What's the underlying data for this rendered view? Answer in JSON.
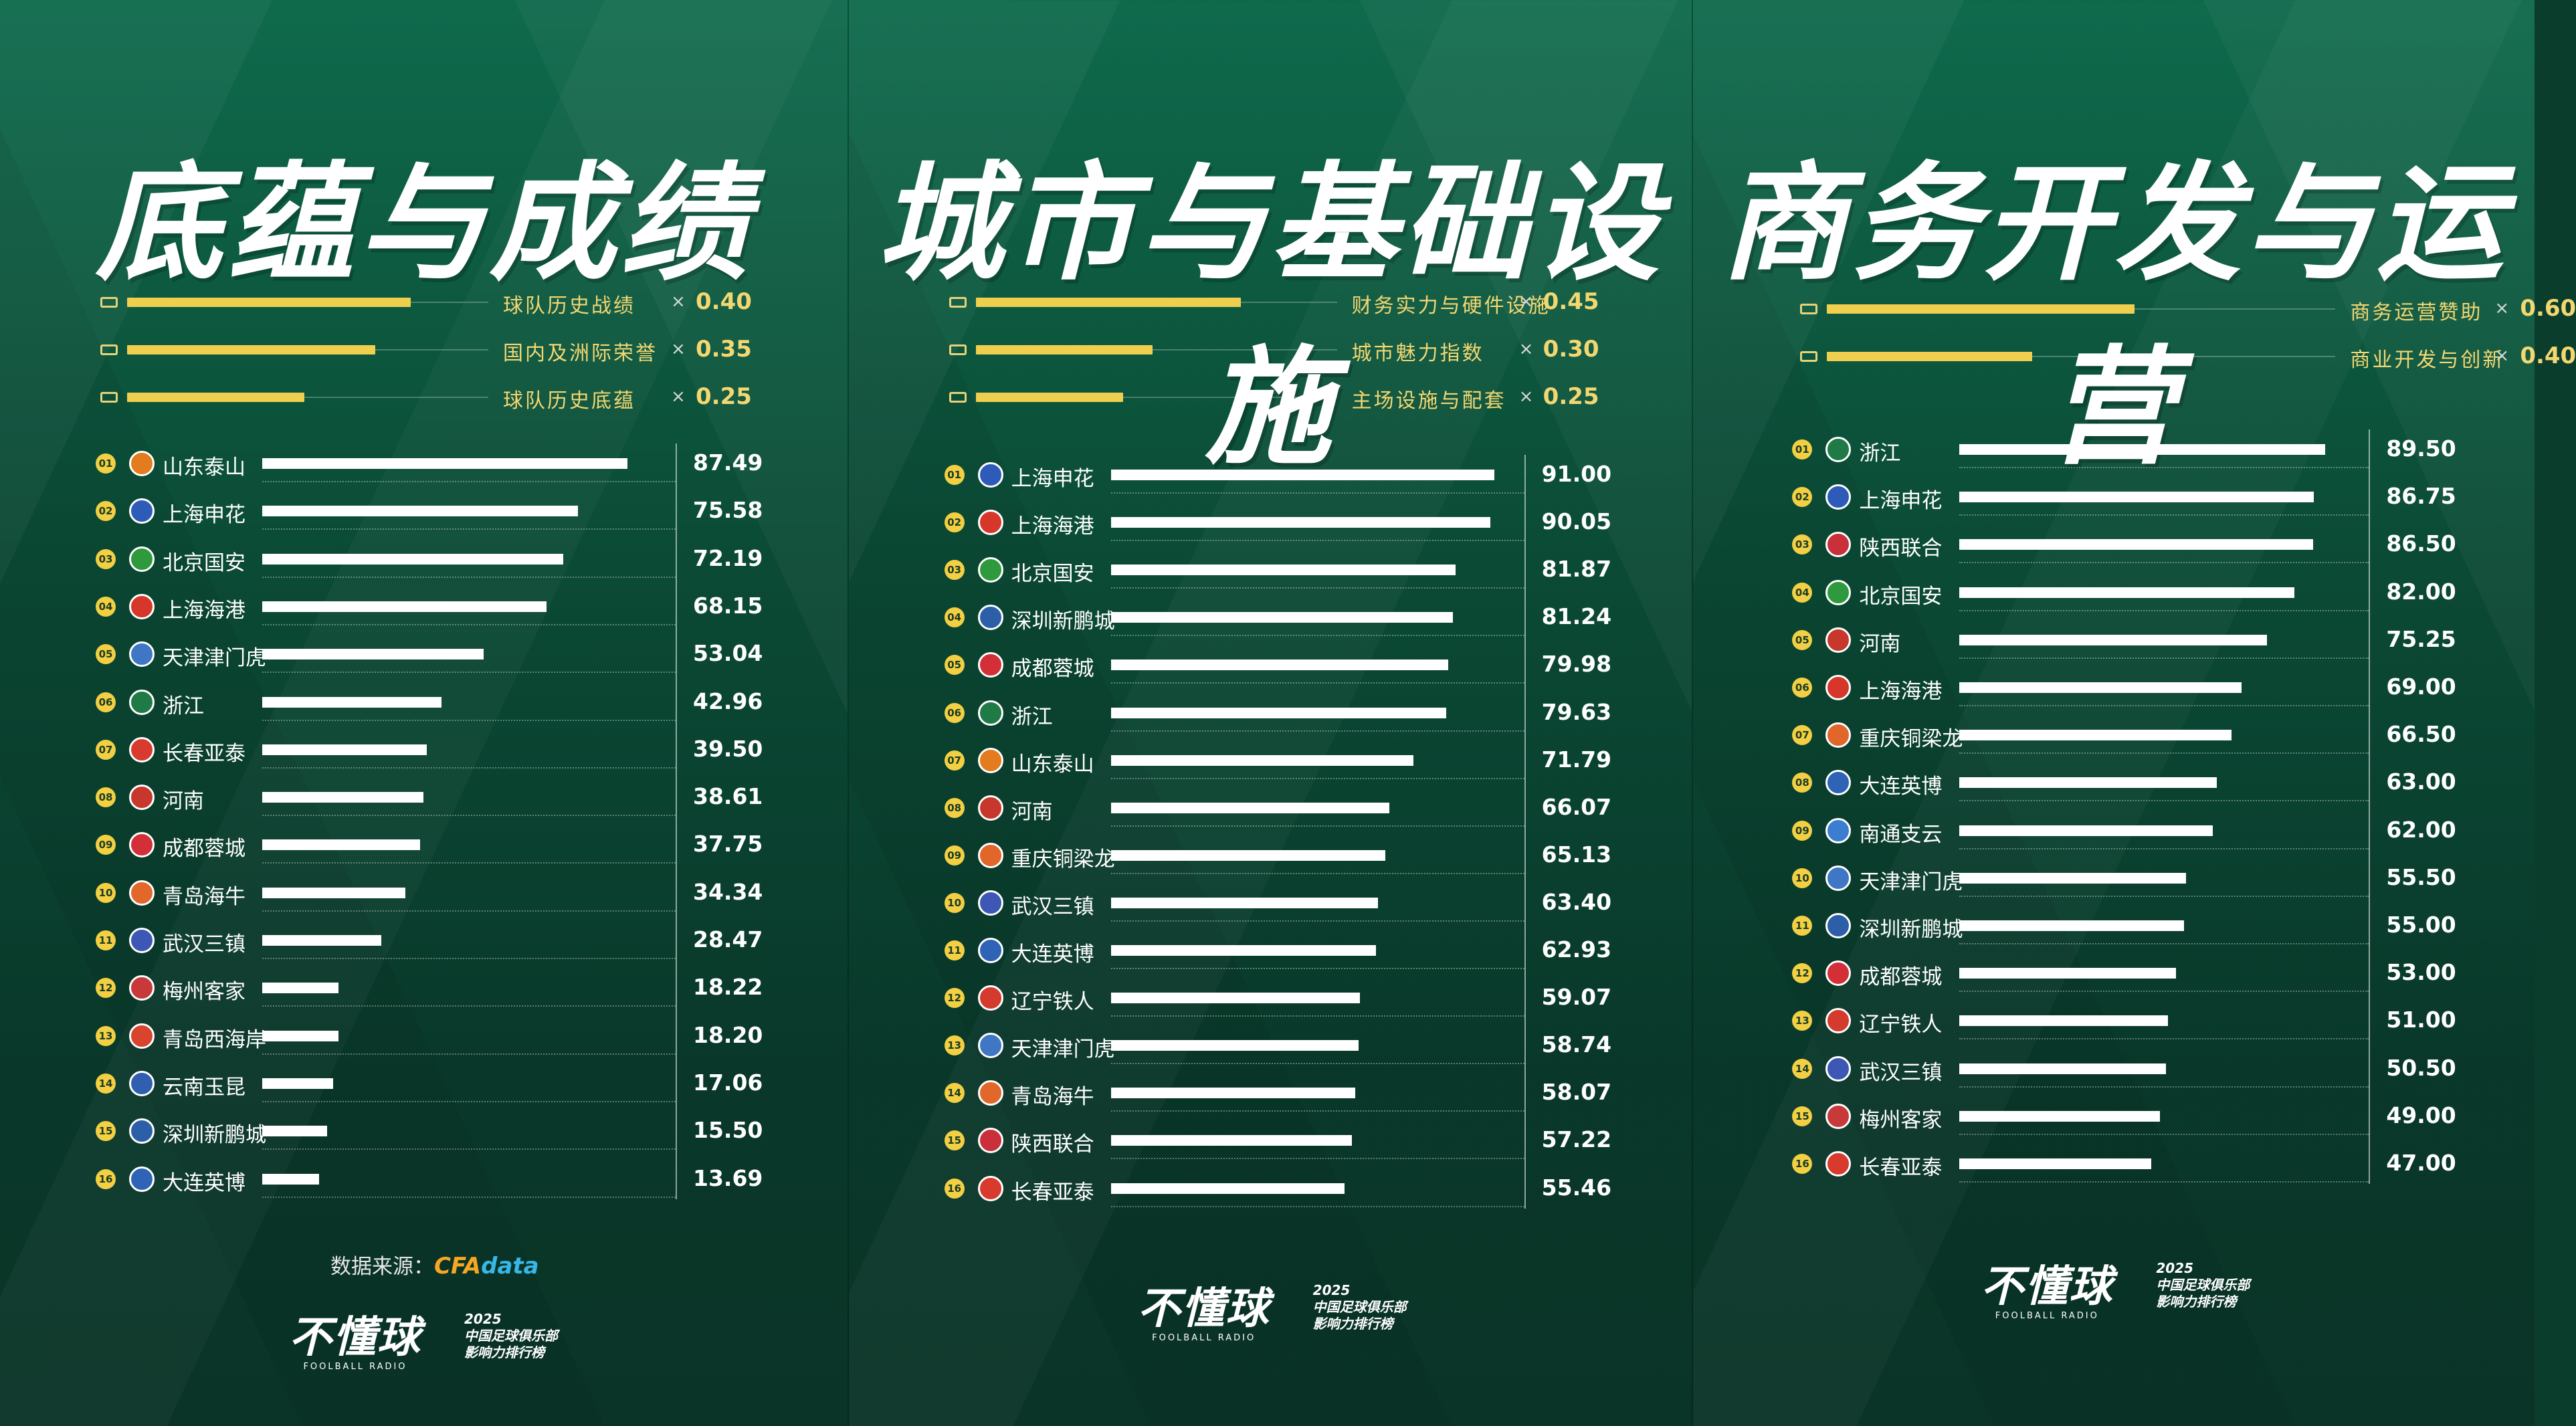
{
  "colors": {
    "accent": "#f0cf4f",
    "bar": "#ffffff",
    "background": "#0b4a35"
  },
  "panels": [
    {
      "title": "底蕴与成绩",
      "weights": [
        {
          "label": "球队历史战绩",
          "x": "×",
          "value": "0.40",
          "weight": 0.4
        },
        {
          "label": "国内及洲际荣誉",
          "x": "×",
          "value": "0.35",
          "weight": 0.35
        },
        {
          "label": "球队历史底蕴",
          "x": "×",
          "value": "0.25",
          "weight": 0.25
        }
      ],
      "teams": [
        {
          "rank": "01",
          "name": "山东泰山",
          "value": "87.49",
          "score": 87.49,
          "color": "#e37b1f"
        },
        {
          "rank": "02",
          "name": "上海申花",
          "value": "75.58",
          "score": 75.58,
          "color": "#2e5bb8"
        },
        {
          "rank": "03",
          "name": "北京国安",
          "value": "72.19",
          "score": 72.19,
          "color": "#2f9a3d"
        },
        {
          "rank": "04",
          "name": "上海海港",
          "value": "68.15",
          "score": 68.15,
          "color": "#d7372a"
        },
        {
          "rank": "05",
          "name": "天津津门虎",
          "value": "53.04",
          "score": 53.04,
          "color": "#3f77c4"
        },
        {
          "rank": "06",
          "name": "浙江",
          "value": "42.96",
          "score": 42.96,
          "color": "#1f7a45"
        },
        {
          "rank": "07",
          "name": "长春亚泰",
          "value": "39.50",
          "score": 39.5,
          "color": "#d83a2e"
        },
        {
          "rank": "08",
          "name": "河南",
          "value": "38.61",
          "score": 38.61,
          "color": "#c7372c"
        },
        {
          "rank": "09",
          "name": "成都蓉城",
          "value": "37.75",
          "score": 37.75,
          "color": "#d22f36"
        },
        {
          "rank": "10",
          "name": "青岛海牛",
          "value": "34.34",
          "score": 34.34,
          "color": "#e2672a"
        },
        {
          "rank": "11",
          "name": "武汉三镇",
          "value": "28.47",
          "score": 28.47,
          "color": "#3d57b4"
        },
        {
          "rank": "12",
          "name": "梅州客家",
          "value": "18.22",
          "score": 18.22,
          "color": "#c83a3a"
        },
        {
          "rank": "13",
          "name": "青岛西海岸",
          "value": "18.20",
          "score": 18.2,
          "color": "#d8442e"
        },
        {
          "rank": "14",
          "name": "云南玉昆",
          "value": "17.06",
          "score": 17.06,
          "color": "#2f5fae"
        },
        {
          "rank": "15",
          "name": "深圳新鹏城",
          "value": "15.50",
          "score": 15.5,
          "color": "#2d5fa8"
        },
        {
          "rank": "16",
          "name": "大连英博",
          "value": "13.69",
          "score": 13.69,
          "color": "#2e63b5"
        }
      ],
      "source_label": "数据来源：",
      "source_logo_a": "CFA",
      "source_logo_b": "data",
      "brand": {
        "main": "不懂球",
        "sub": "FOOLBALL RADIO",
        "year": "2025",
        "line1": "中国足球俱乐部",
        "line2": "影响力排行榜"
      }
    },
    {
      "title": "城市与基础设施",
      "weights": [
        {
          "label": "财务实力与硬件设施",
          "x": "×",
          "value": "0.45",
          "weight": 0.45
        },
        {
          "label": "城市魅力指数",
          "x": "×",
          "value": "0.30",
          "weight": 0.3
        },
        {
          "label": "主场设施与配套",
          "x": "×",
          "value": "0.25",
          "weight": 0.25
        }
      ],
      "teams": [
        {
          "rank": "01",
          "name": "上海申花",
          "value": "91.00",
          "score": 91.0,
          "color": "#2e5bb8"
        },
        {
          "rank": "02",
          "name": "上海海港",
          "value": "90.05",
          "score": 90.05,
          "color": "#d7372a"
        },
        {
          "rank": "03",
          "name": "北京国安",
          "value": "81.87",
          "score": 81.87,
          "color": "#2f9a3d"
        },
        {
          "rank": "04",
          "name": "深圳新鹏城",
          "value": "81.24",
          "score": 81.24,
          "color": "#2d5fa8"
        },
        {
          "rank": "05",
          "name": "成都蓉城",
          "value": "79.98",
          "score": 79.98,
          "color": "#d22f36"
        },
        {
          "rank": "06",
          "name": "浙江",
          "value": "79.63",
          "score": 79.63,
          "color": "#1f7a45"
        },
        {
          "rank": "07",
          "name": "山东泰山",
          "value": "71.79",
          "score": 71.79,
          "color": "#e37b1f"
        },
        {
          "rank": "08",
          "name": "河南",
          "value": "66.07",
          "score": 66.07,
          "color": "#c7372c"
        },
        {
          "rank": "09",
          "name": "重庆铜梁龙",
          "value": "65.13",
          "score": 65.13,
          "color": "#e0662a"
        },
        {
          "rank": "10",
          "name": "武汉三镇",
          "value": "63.40",
          "score": 63.4,
          "color": "#3d57b4"
        },
        {
          "rank": "11",
          "name": "大连英博",
          "value": "62.93",
          "score": 62.93,
          "color": "#2e63b5"
        },
        {
          "rank": "12",
          "name": "辽宁铁人",
          "value": "59.07",
          "score": 59.07,
          "color": "#d43a2d"
        },
        {
          "rank": "13",
          "name": "天津津门虎",
          "value": "58.74",
          "score": 58.74,
          "color": "#3f77c4"
        },
        {
          "rank": "14",
          "name": "青岛海牛",
          "value": "58.07",
          "score": 58.07,
          "color": "#e2672a"
        },
        {
          "rank": "15",
          "name": "陕西联合",
          "value": "57.22",
          "score": 57.22,
          "color": "#c9303a"
        },
        {
          "rank": "16",
          "name": "长春亚泰",
          "value": "55.46",
          "score": 55.46,
          "color": "#d83a2e"
        }
      ],
      "brand": {
        "main": "不懂球",
        "sub": "FOOLBALL RADIO",
        "year": "2025",
        "line1": "中国足球俱乐部",
        "line2": "影响力排行榜"
      }
    },
    {
      "title": "商务开发与运营",
      "weights": [
        {
          "label": "商务运营赞助",
          "x": "×",
          "value": "0.60",
          "weight": 0.6
        },
        {
          "label": "商业开发与创新",
          "x": "×",
          "value": "0.40",
          "weight": 0.4
        }
      ],
      "teams": [
        {
          "rank": "01",
          "name": "浙江",
          "value": "89.50",
          "score": 89.5,
          "color": "#1f7a45"
        },
        {
          "rank": "02",
          "name": "上海申花",
          "value": "86.75",
          "score": 86.75,
          "color": "#2e5bb8"
        },
        {
          "rank": "03",
          "name": "陕西联合",
          "value": "86.50",
          "score": 86.5,
          "color": "#c9303a"
        },
        {
          "rank": "04",
          "name": "北京国安",
          "value": "82.00",
          "score": 82.0,
          "color": "#2f9a3d"
        },
        {
          "rank": "05",
          "name": "河南",
          "value": "75.25",
          "score": 75.25,
          "color": "#c7372c"
        },
        {
          "rank": "06",
          "name": "上海海港",
          "value": "69.00",
          "score": 69.0,
          "color": "#d7372a"
        },
        {
          "rank": "07",
          "name": "重庆铜梁龙",
          "value": "66.50",
          "score": 66.5,
          "color": "#e0662a"
        },
        {
          "rank": "08",
          "name": "大连英博",
          "value": "63.00",
          "score": 63.0,
          "color": "#2e63b5"
        },
        {
          "rank": "09",
          "name": "南通支云",
          "value": "62.00",
          "score": 62.0,
          "color": "#3b7dd0"
        },
        {
          "rank": "10",
          "name": "天津津门虎",
          "value": "55.50",
          "score": 55.5,
          "color": "#3f77c4"
        },
        {
          "rank": "11",
          "name": "深圳新鹏城",
          "value": "55.00",
          "score": 55.0,
          "color": "#2d5fa8"
        },
        {
          "rank": "12",
          "name": "成都蓉城",
          "value": "53.00",
          "score": 53.0,
          "color": "#d22f36"
        },
        {
          "rank": "13",
          "name": "辽宁铁人",
          "value": "51.00",
          "score": 51.0,
          "color": "#d43a2d"
        },
        {
          "rank": "14",
          "name": "武汉三镇",
          "value": "50.50",
          "score": 50.5,
          "color": "#3d57b4"
        },
        {
          "rank": "15",
          "name": "梅州客家",
          "value": "49.00",
          "score": 49.0,
          "color": "#c83a3a"
        },
        {
          "rank": "16",
          "name": "长春亚泰",
          "value": "47.00",
          "score": 47.0,
          "color": "#d83a2e"
        }
      ],
      "brand": {
        "main": "不懂球",
        "sub": "FOOLBALL RADIO",
        "year": "2025",
        "line1": "中国足球俱乐部",
        "line2": "影响力排行榜"
      }
    }
  ],
  "chart_data": [
    {
      "type": "bar",
      "title": "底蕴与成绩",
      "categories": [
        "山东泰山",
        "上海申花",
        "北京国安",
        "上海海港",
        "天津津门虎",
        "浙江",
        "长春亚泰",
        "河南",
        "成都蓉城",
        "青岛海牛",
        "武汉三镇",
        "梅州客家",
        "青岛西海岸",
        "云南玉昆",
        "深圳新鹏城",
        "大连英博"
      ],
      "values": [
        87.49,
        75.58,
        72.19,
        68.15,
        53.04,
        42.96,
        39.5,
        38.61,
        37.75,
        34.34,
        28.47,
        18.22,
        18.2,
        17.06,
        15.5,
        13.69
      ],
      "xlim": [
        0,
        100
      ]
    },
    {
      "type": "bar",
      "title": "城市与基础设施",
      "categories": [
        "上海申花",
        "上海海港",
        "北京国安",
        "深圳新鹏城",
        "成都蓉城",
        "浙江",
        "山东泰山",
        "河南",
        "重庆铜梁龙",
        "武汉三镇",
        "大连英博",
        "辽宁铁人",
        "天津津门虎",
        "青岛海牛",
        "陕西联合",
        "长春亚泰"
      ],
      "values": [
        91.0,
        90.05,
        81.87,
        81.24,
        79.98,
        79.63,
        71.79,
        66.07,
        65.13,
        63.4,
        62.93,
        59.07,
        58.74,
        58.07,
        57.22,
        55.46
      ],
      "xlim": [
        0,
        100
      ]
    },
    {
      "type": "bar",
      "title": "商务开发与运营",
      "categories": [
        "浙江",
        "上海申花",
        "陕西联合",
        "北京国安",
        "河南",
        "上海海港",
        "重庆铜梁龙",
        "大连英博",
        "南通支云",
        "天津津门虎",
        "深圳新鹏城",
        "成都蓉城",
        "辽宁铁人",
        "武汉三镇",
        "梅州客家",
        "长春亚泰"
      ],
      "values": [
        89.5,
        86.75,
        86.5,
        82.0,
        75.25,
        69.0,
        66.5,
        63.0,
        62.0,
        55.5,
        55.0,
        53.0,
        51.0,
        50.5,
        49.0,
        47.0
      ],
      "xlim": [
        0,
        100
      ]
    }
  ]
}
